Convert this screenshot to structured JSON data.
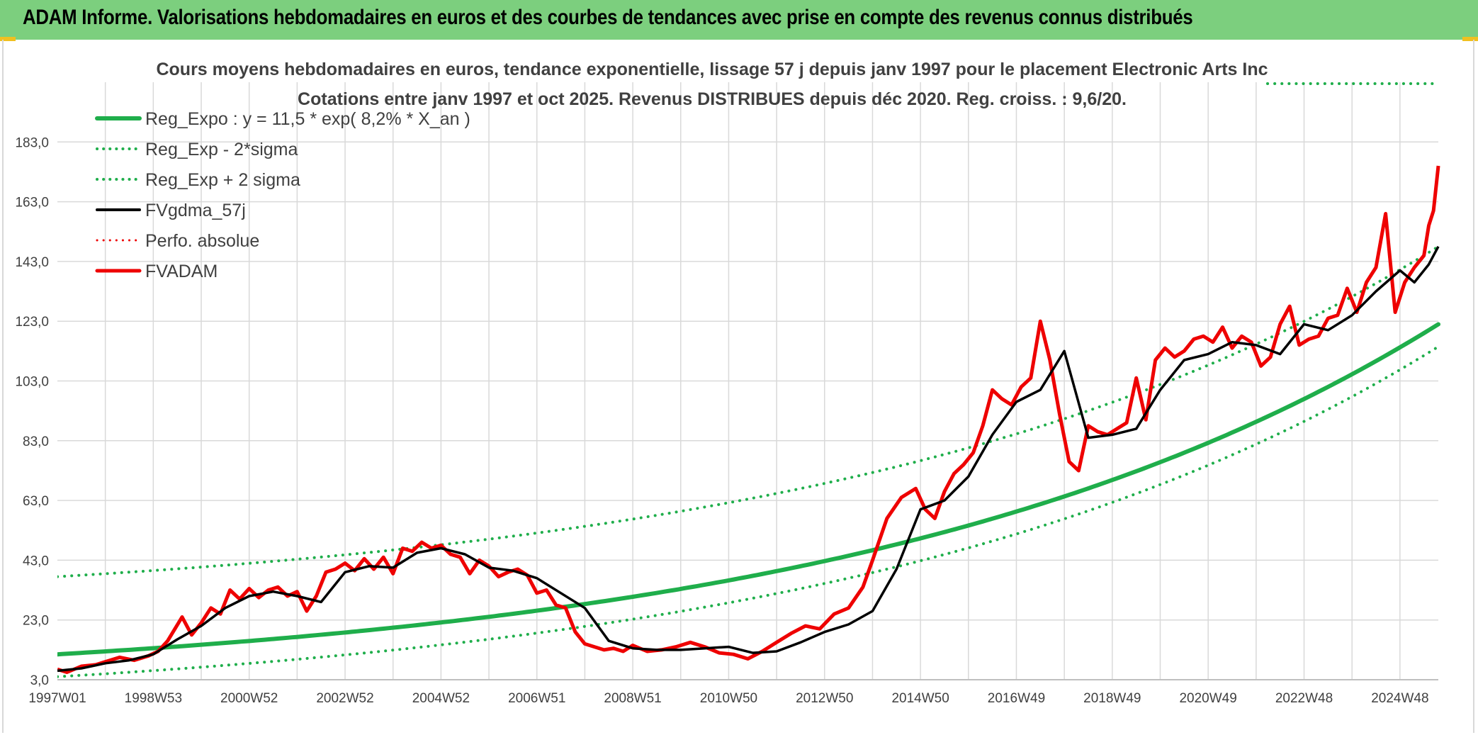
{
  "banner": {
    "title": "ADAM Informe. Valorisations hebdomadaires en euros et des courbes de tendances avec prise en compte des revenus connus distribués"
  },
  "colors": {
    "banner_bg": "#7ccf7e",
    "trend_green": "#1fae4b",
    "price_red": "#ee0000",
    "smooth_black": "#000000",
    "grid": "#d9d9d9",
    "corner_accent": "#f0c020"
  },
  "chart_data": {
    "type": "line",
    "title": "Cours moyens hebdomadaires en euros, tendance exponentielle, lissage 57 j depuis janv 1997 pour le placement Electronic Arts Inc",
    "subtitle": "Cotations entre janv 1997 et oct 2025. Revenus DISTRIBUES depuis déc 2020. Reg. croiss. : 9,6/20.",
    "xlabel": "",
    "ylabel": "",
    "ylim": [
      3.0,
      203.0
    ],
    "y_ticks": [
      "3,0",
      "23,0",
      "43,0",
      "63,0",
      "83,0",
      "103,0",
      "123,0",
      "143,0",
      "163,0",
      "183,0"
    ],
    "x_ticks": [
      "1997W01",
      "1998W53",
      "2000W52",
      "2002W52",
      "2004W52",
      "2006W51",
      "2008W51",
      "2010W50",
      "2012W50",
      "2014W50",
      "2016W49",
      "2018W49",
      "2020W49",
      "2022W48",
      "2024W48"
    ],
    "x_tick_years": [
      1997.0,
      1999.0,
      2001.0,
      2003.0,
      2005.0,
      2007.0,
      2009.0,
      2011.0,
      2013.0,
      2015.0,
      2017.0,
      2019.0,
      2021.0,
      2023.0,
      2025.0
    ],
    "x_range": [
      1997.0,
      2025.8
    ],
    "grid": true,
    "legend_position": "top-left",
    "legend": [
      {
        "label": "Reg_Expo : y = 11,5 * exp( 8,2% *  X_an )",
        "color": "#1fae4b",
        "style": "solid",
        "width": 6
      },
      {
        "label": "Reg_Exp - 2*sigma",
        "color": "#1fae4b",
        "style": "dotted",
        "width": 4
      },
      {
        "label": "Reg_Exp + 2 sigma",
        "color": "#1fae4b",
        "style": "dotted",
        "width": 4
      },
      {
        "label": "FVgdma_57j",
        "color": "#000000",
        "style": "solid",
        "width": 4
      },
      {
        "label": "Perfo. absolue",
        "color": "#ee0000",
        "style": "dotted",
        "width": 3
      },
      {
        "label": "FVADAM",
        "color": "#ee0000",
        "style": "solid",
        "width": 5
      }
    ],
    "series": [
      {
        "name": "Reg_Expo : y = 11,5 * exp( 8,2% *  X_an )",
        "kind": "exponential",
        "a": 11.5,
        "rate": 0.082,
        "offset": 0
      },
      {
        "name": "Reg_Exp - 2*sigma",
        "kind": "exponential",
        "a": 11.5,
        "rate": 0.082,
        "offset": -7.5
      },
      {
        "name": "Reg_Exp + 2 sigma",
        "kind": "exponential",
        "a": 11.5,
        "rate": 0.082,
        "offset": 26
      },
      {
        "name": "FVADAM",
        "x": [
          1997.0,
          1997.2,
          1997.5,
          1997.8,
          1998.0,
          1998.3,
          1998.6,
          1998.9,
          1999.1,
          1999.3,
          1999.6,
          1999.8,
          2000.0,
          2000.2,
          2000.4,
          2000.6,
          2000.8,
          2001.0,
          2001.2,
          2001.4,
          2001.6,
          2001.8,
          2002.0,
          2002.2,
          2002.4,
          2002.6,
          2002.8,
          2003.0,
          2003.2,
          2003.4,
          2003.6,
          2003.8,
          2004.0,
          2004.2,
          2004.4,
          2004.6,
          2004.8,
          2005.0,
          2005.2,
          2005.4,
          2005.6,
          2005.8,
          2006.0,
          2006.2,
          2006.4,
          2006.6,
          2006.8,
          2007.0,
          2007.2,
          2007.4,
          2007.6,
          2007.8,
          2008.0,
          2008.2,
          2008.4,
          2008.6,
          2008.8,
          2009.0,
          2009.3,
          2009.6,
          2009.9,
          2010.2,
          2010.5,
          2010.8,
          2011.1,
          2011.4,
          2011.7,
          2012.0,
          2012.3,
          2012.6,
          2012.9,
          2013.2,
          2013.5,
          2013.8,
          2014.0,
          2014.3,
          2014.6,
          2014.9,
          2015.1,
          2015.3,
          2015.5,
          2015.7,
          2015.9,
          2016.1,
          2016.3,
          2016.5,
          2016.7,
          2016.9,
          2017.1,
          2017.3,
          2017.5,
          2017.7,
          2017.9,
          2018.1,
          2018.3,
          2018.5,
          2018.7,
          2018.9,
          2019.1,
          2019.3,
          2019.5,
          2019.7,
          2019.9,
          2020.1,
          2020.3,
          2020.5,
          2020.7,
          2020.9,
          2021.1,
          2021.3,
          2021.5,
          2021.7,
          2021.9,
          2022.1,
          2022.3,
          2022.5,
          2022.7,
          2022.9,
          2023.1,
          2023.3,
          2023.5,
          2023.7,
          2023.9,
          2024.1,
          2024.3,
          2024.5,
          2024.7,
          2024.9,
          2025.1,
          2025.3,
          2025.5,
          2025.6,
          2025.7,
          2025.8
        ],
        "y": [
          6.5,
          5.5,
          7.5,
          8.0,
          9.0,
          10.5,
          9.5,
          11.0,
          12.5,
          16.0,
          24.0,
          18.0,
          22.0,
          27.0,
          25.0,
          33.0,
          30.0,
          33.5,
          30.5,
          33.0,
          34.0,
          31.0,
          32.5,
          26.0,
          31.0,
          39.0,
          40.0,
          42.0,
          39.5,
          43.5,
          40.0,
          44.0,
          38.5,
          47.0,
          46.0,
          49.0,
          47.0,
          48.0,
          45.0,
          44.0,
          38.5,
          43.0,
          41.0,
          37.5,
          39.0,
          40.0,
          38.0,
          32.0,
          33.0,
          28.0,
          27.0,
          19.0,
          15.0,
          14.0,
          13.0,
          13.5,
          12.5,
          14.5,
          12.5,
          13.0,
          14.0,
          15.5,
          14.0,
          12.0,
          11.5,
          10.0,
          12.5,
          15.5,
          18.5,
          21.0,
          20.0,
          25.0,
          27.0,
          34.0,
          43.0,
          57.0,
          64.0,
          67.0,
          60.0,
          57.0,
          66.0,
          72.0,
          75.0,
          79.0,
          88.0,
          100.0,
          97.0,
          95.0,
          101.0,
          104.0,
          123.0,
          110.0,
          92.0,
          76.0,
          73.0,
          88.0,
          86.0,
          85.0,
          87.0,
          89.0,
          104.0,
          90.0,
          110.0,
          114.0,
          111.0,
          113.0,
          117.0,
          118.0,
          116.0,
          121.0,
          114.0,
          118.0,
          116.0,
          108.0,
          111.0,
          122.0,
          128.0,
          115.0,
          117.0,
          118.0,
          124.0,
          125.0,
          134.0,
          126.0,
          136.0,
          141.0,
          159.0,
          126.0,
          136.0,
          141.0,
          145.0,
          155.0,
          160.0,
          175.0
        ]
      },
      {
        "name": "FVgdma_57j",
        "x": [
          1997.0,
          1997.5,
          1998.0,
          1998.5,
          1999.0,
          1999.5,
          2000.0,
          2000.5,
          2001.0,
          2001.5,
          2002.0,
          2002.5,
          2003.0,
          2003.5,
          2004.0,
          2004.5,
          2005.0,
          2005.5,
          2006.0,
          2006.5,
          2007.0,
          2007.5,
          2008.0,
          2008.5,
          2009.0,
          2009.5,
          2010.0,
          2010.5,
          2011.0,
          2011.5,
          2012.0,
          2012.5,
          2013.0,
          2013.5,
          2014.0,
          2014.5,
          2015.0,
          2015.5,
          2016.0,
          2016.5,
          2017.0,
          2017.5,
          2018.0,
          2018.5,
          2019.0,
          2019.5,
          2020.0,
          2020.5,
          2021.0,
          2021.5,
          2022.0,
          2022.5,
          2023.0,
          2023.5,
          2024.0,
          2024.5,
          2025.0,
          2025.3,
          2025.6,
          2025.8
        ],
        "y": [
          6.0,
          6.8,
          8.5,
          9.5,
          11.5,
          16.5,
          21.0,
          27.0,
          31.0,
          32.5,
          31.0,
          29.0,
          39.0,
          41.0,
          40.5,
          45.5,
          47.0,
          45.0,
          40.5,
          39.5,
          37.0,
          32.0,
          27.0,
          16.0,
          13.5,
          13.0,
          13.0,
          13.5,
          14.0,
          12.0,
          12.5,
          15.5,
          19.0,
          21.5,
          26.0,
          40.0,
          60.0,
          63.0,
          71.0,
          85.0,
          96.0,
          100.0,
          113.0,
          84.0,
          85.0,
          87.0,
          100.0,
          110.0,
          112.0,
          116.0,
          115.0,
          112.0,
          122.0,
          120.0,
          125.0,
          133.0,
          140.0,
          136.0,
          142.0,
          148.0
        ]
      }
    ]
  }
}
